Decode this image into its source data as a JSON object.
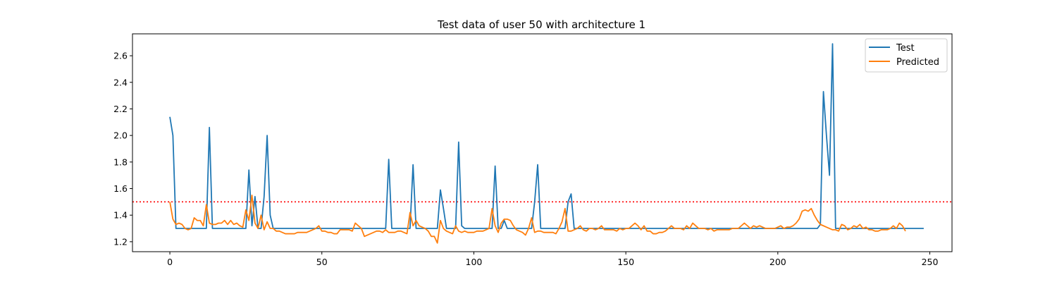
{
  "chart_data": {
    "type": "line",
    "title": "Test data of user 50 with architecture 1",
    "xlabel": "",
    "ylabel": "",
    "xlim": [
      -12.3,
      257.3
    ],
    "ylim": [
      1.125,
      2.765
    ],
    "xticks": [
      0,
      50,
      100,
      150,
      200,
      250
    ],
    "yticks": [
      1.2,
      1.4,
      1.6,
      1.8,
      2.0,
      2.2,
      2.4,
      2.6
    ],
    "threshold": 1.5,
    "grid": false,
    "legend": "top-right",
    "colors": {
      "test": "#1f77b4",
      "predicted": "#ff7f0e",
      "threshold": "#ff0000"
    },
    "series": [
      {
        "name": "Test",
        "values": [
          2.14,
          2.0,
          1.3,
          1.3,
          1.3,
          1.3,
          1.3,
          1.3,
          1.3,
          1.3,
          1.3,
          1.3,
          1.3,
          2.06,
          1.3,
          1.3,
          1.3,
          1.3,
          1.3,
          1.3,
          1.3,
          1.3,
          1.3,
          1.3,
          1.3,
          1.3,
          1.74,
          1.32,
          1.54,
          1.3,
          1.3,
          1.54,
          2.0,
          1.4,
          1.3,
          1.3,
          1.3,
          1.3,
          1.3,
          1.3,
          1.3,
          1.3,
          1.3,
          1.3,
          1.3,
          1.3,
          1.3,
          1.3,
          1.3,
          1.3,
          1.3,
          1.3,
          1.3,
          1.3,
          1.3,
          1.3,
          1.3,
          1.3,
          1.3,
          1.3,
          1.3,
          1.3,
          1.3,
          1.3,
          1.3,
          1.3,
          1.3,
          1.3,
          1.3,
          1.3,
          1.3,
          1.3,
          1.82,
          1.3,
          1.3,
          1.3,
          1.3,
          1.3,
          1.3,
          1.3,
          1.78,
          1.3,
          1.3,
          1.3,
          1.3,
          1.3,
          1.3,
          1.3,
          1.3,
          1.59,
          1.45,
          1.3,
          1.3,
          1.3,
          1.3,
          1.95,
          1.32,
          1.3,
          1.3,
          1.3,
          1.3,
          1.3,
          1.3,
          1.3,
          1.3,
          1.3,
          1.3,
          1.77,
          1.3,
          1.3,
          1.36,
          1.3,
          1.3,
          1.3,
          1.3,
          1.3,
          1.3,
          1.3,
          1.3,
          1.3,
          1.5,
          1.78,
          1.3,
          1.3,
          1.3,
          1.3,
          1.3,
          1.3,
          1.3,
          1.3,
          1.3,
          1.5,
          1.56,
          1.3,
          1.3,
          1.3,
          1.3,
          1.3,
          1.3,
          1.3,
          1.3,
          1.3,
          1.3,
          1.3,
          1.3,
          1.3,
          1.3,
          1.3,
          1.3,
          1.3,
          1.3,
          1.3,
          1.3,
          1.3,
          1.3,
          1.3,
          1.3,
          1.3,
          1.3,
          1.3,
          1.3,
          1.3,
          1.3,
          1.3,
          1.3,
          1.3,
          1.3,
          1.3,
          1.3,
          1.3,
          1.3,
          1.3,
          1.3,
          1.3,
          1.3,
          1.3,
          1.3,
          1.3,
          1.3,
          1.3,
          1.3,
          1.3,
          1.3,
          1.3,
          1.3,
          1.3,
          1.3,
          1.3,
          1.3,
          1.3,
          1.3,
          1.3,
          1.3,
          1.3,
          1.3,
          1.3,
          1.3,
          1.3,
          1.3,
          1.3,
          1.3,
          1.3,
          1.3,
          1.3,
          1.3,
          1.3,
          1.3,
          1.3,
          1.3,
          1.3,
          1.3,
          1.3,
          1.3,
          1.3,
          1.33,
          2.33,
          2.0,
          1.7,
          2.69,
          1.3,
          1.3,
          1.3,
          1.3,
          1.3,
          1.3,
          1.3,
          1.3,
          1.3,
          1.3,
          1.3,
          1.3,
          1.3,
          1.3,
          1.3,
          1.3,
          1.3,
          1.3,
          1.3,
          1.3,
          1.3,
          1.3,
          1.3,
          1.3,
          1.3,
          1.3,
          1.3,
          1.3,
          1.3,
          1.3
        ]
      },
      {
        "name": "Predicted",
        "values": [
          1.5,
          1.37,
          1.33,
          1.34,
          1.33,
          1.3,
          1.29,
          1.3,
          1.38,
          1.36,
          1.36,
          1.32,
          1.48,
          1.34,
          1.33,
          1.33,
          1.34,
          1.34,
          1.36,
          1.33,
          1.36,
          1.33,
          1.34,
          1.32,
          1.31,
          1.44,
          1.36,
          1.55,
          1.34,
          1.3,
          1.4,
          1.29,
          1.35,
          1.3,
          1.3,
          1.28,
          1.28,
          1.27,
          1.26,
          1.26,
          1.26,
          1.26,
          1.27,
          1.27,
          1.27,
          1.27,
          1.28,
          1.29,
          1.3,
          1.32,
          1.28,
          1.28,
          1.27,
          1.27,
          1.26,
          1.26,
          1.29,
          1.29,
          1.29,
          1.29,
          1.28,
          1.34,
          1.32,
          1.3,
          1.24,
          1.25,
          1.26,
          1.27,
          1.28,
          1.28,
          1.27,
          1.29,
          1.27,
          1.27,
          1.27,
          1.28,
          1.28,
          1.27,
          1.26,
          1.42,
          1.32,
          1.36,
          1.32,
          1.31,
          1.3,
          1.28,
          1.24,
          1.24,
          1.19,
          1.36,
          1.3,
          1.28,
          1.27,
          1.26,
          1.32,
          1.28,
          1.27,
          1.28,
          1.27,
          1.27,
          1.27,
          1.28,
          1.28,
          1.28,
          1.29,
          1.3,
          1.45,
          1.32,
          1.27,
          1.34,
          1.37,
          1.37,
          1.36,
          1.32,
          1.29,
          1.28,
          1.27,
          1.25,
          1.3,
          1.38,
          1.27,
          1.28,
          1.28,
          1.27,
          1.27,
          1.27,
          1.27,
          1.26,
          1.3,
          1.35,
          1.45,
          1.28,
          1.28,
          1.29,
          1.3,
          1.32,
          1.29,
          1.28,
          1.3,
          1.3,
          1.29,
          1.3,
          1.32,
          1.29,
          1.29,
          1.29,
          1.29,
          1.28,
          1.3,
          1.29,
          1.3,
          1.3,
          1.32,
          1.34,
          1.32,
          1.29,
          1.32,
          1.28,
          1.28,
          1.26,
          1.26,
          1.27,
          1.27,
          1.28,
          1.3,
          1.32,
          1.3,
          1.3,
          1.3,
          1.29,
          1.32,
          1.3,
          1.34,
          1.32,
          1.3,
          1.3,
          1.3,
          1.29,
          1.3,
          1.28,
          1.29,
          1.29,
          1.29,
          1.29,
          1.29,
          1.3,
          1.3,
          1.3,
          1.32,
          1.34,
          1.32,
          1.3,
          1.32,
          1.31,
          1.32,
          1.31,
          1.3,
          1.3,
          1.3,
          1.3,
          1.31,
          1.32,
          1.3,
          1.31,
          1.31,
          1.32,
          1.34,
          1.37,
          1.43,
          1.44,
          1.43,
          1.45,
          1.4,
          1.36,
          1.33,
          1.32,
          1.31,
          1.3,
          1.29,
          1.29,
          1.28,
          1.33,
          1.32,
          1.29,
          1.3,
          1.32,
          1.31,
          1.33,
          1.3,
          1.31,
          1.29,
          1.29,
          1.28,
          1.28,
          1.29,
          1.29,
          1.29,
          1.3,
          1.32,
          1.3,
          1.34,
          1.32,
          1.28
        ]
      }
    ]
  }
}
